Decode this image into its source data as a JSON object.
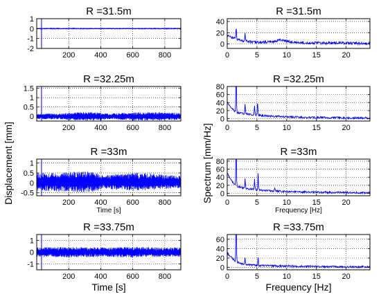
{
  "figure": {
    "ylabel_left": "Displacement [mm]",
    "ylabel_right": "Spectrum [mm/Hz]"
  },
  "chart_data": [
    {
      "type": "line",
      "title": "R =31.5m",
      "xlabel": "",
      "ylabel": "",
      "xlim": [
        0,
        900
      ],
      "ylim": [
        -2,
        1
      ],
      "xticks": [
        200,
        400,
        600,
        800
      ],
      "yticks": [
        1,
        0,
        -1,
        -2
      ],
      "vline_x": 30,
      "grid": true,
      "color": "#0000ff",
      "series": [
        {
          "x_range": [
            0,
            900
          ],
          "center": 0.0,
          "amplitude": 0.06,
          "envelope": [
            [
              0,
              1.0
            ],
            [
              900,
              1.0
            ]
          ]
        }
      ]
    },
    {
      "type": "line",
      "title": "R =32.25m",
      "xlabel": "",
      "ylabel": "",
      "xlim": [
        0,
        900
      ],
      "ylim": [
        -0.25,
        1.6
      ],
      "xticks": [
        200,
        400,
        600,
        800
      ],
      "yticks": [
        1.5,
        1,
        0.5,
        0
      ],
      "vline_x": 30,
      "grid": true,
      "color": "#0000ff",
      "series": [
        {
          "x_range": [
            0,
            900
          ],
          "center": 0.0,
          "amplitude": 0.2,
          "envelope": [
            [
              0,
              0.7
            ],
            [
              150,
              0.8
            ],
            [
              250,
              1.1
            ],
            [
              330,
              1.2
            ],
            [
              420,
              0.9
            ],
            [
              460,
              0.7
            ],
            [
              520,
              1.0
            ],
            [
              650,
              1.1
            ],
            [
              750,
              1.1
            ],
            [
              900,
              0.9
            ]
          ]
        }
      ]
    },
    {
      "type": "line",
      "title": "R =33m",
      "xlabel": "Time [s]",
      "ylabel": "",
      "xlim": [
        0,
        900
      ],
      "ylim": [
        -0.65,
        1.2
      ],
      "xticks": [
        200,
        400,
        600,
        800
      ],
      "yticks": [
        1,
        0.5,
        0,
        -0.5
      ],
      "vline_x": 30,
      "grid": true,
      "color": "#0000ff",
      "series": [
        {
          "x_range": [
            0,
            900
          ],
          "center": 0.05,
          "amplitude": 0.55,
          "envelope": [
            [
              0,
              0.8
            ],
            [
              150,
              0.9
            ],
            [
              300,
              1.0
            ],
            [
              350,
              0.95
            ],
            [
              420,
              0.6
            ],
            [
              470,
              0.7
            ],
            [
              600,
              0.85
            ],
            [
              700,
              0.8
            ],
            [
              800,
              0.65
            ],
            [
              900,
              0.55
            ]
          ]
        }
      ]
    },
    {
      "type": "line",
      "title": "R =33.75m",
      "xlabel": "Time [s]",
      "ylabel": "",
      "xlim": [
        0,
        900
      ],
      "ylim": [
        -1.5,
        1.5
      ],
      "xticks": [
        200,
        400,
        600,
        800
      ],
      "yticks": [
        1,
        0,
        -1
      ],
      "vline_x": 30,
      "grid": true,
      "color": "#0000ff",
      "series": [
        {
          "x_range": [
            0,
            900
          ],
          "center": 0.0,
          "amplitude": 0.45,
          "envelope": [
            [
              0,
              0.9
            ],
            [
              200,
              1.0
            ],
            [
              400,
              0.9
            ],
            [
              600,
              1.0
            ],
            [
              800,
              0.9
            ],
            [
              900,
              0.9
            ]
          ]
        }
      ]
    },
    {
      "type": "line",
      "title": "R =31.5m",
      "xlabel": "",
      "ylabel": "",
      "xlim": [
        0,
        24
      ],
      "ylim": [
        -8,
        45
      ],
      "xticks": [
        0,
        5,
        10,
        15,
        20
      ],
      "yticks": [
        40,
        20,
        0
      ],
      "grid": true,
      "color": "#0000ff",
      "series": [
        {
          "baseline": [
            [
              0,
              14
            ],
            [
              2,
              7
            ],
            [
              4,
              3
            ],
            [
              6,
              2
            ],
            [
              8,
              4
            ],
            [
              9,
              7
            ],
            [
              10,
              4
            ],
            [
              12,
              2
            ],
            [
              15,
              1
            ],
            [
              20,
              1
            ],
            [
              24,
              0.5
            ]
          ],
          "noise": 3,
          "peaks": [
            [
              1.5,
              22
            ],
            [
              3.0,
              14
            ]
          ]
        }
      ]
    },
    {
      "type": "line",
      "title": "R =32.25m",
      "xlabel": "",
      "ylabel": "",
      "xlim": [
        0,
        24
      ],
      "ylim": [
        -6,
        80
      ],
      "xticks": [
        0,
        5,
        10,
        15,
        20
      ],
      "yticks": [
        80,
        60,
        40,
        20,
        0
      ],
      "grid": true,
      "color": "#0000ff",
      "series": [
        {
          "baseline": [
            [
              0,
              40
            ],
            [
              0.5,
              30
            ],
            [
              1.4,
              15
            ],
            [
              3,
              12
            ],
            [
              5,
              8
            ],
            [
              8,
              5
            ],
            [
              12,
              3
            ],
            [
              16,
              2
            ],
            [
              20,
              1.5
            ],
            [
              24,
              1
            ]
          ],
          "noise": 3,
          "peaks": [
            [
              1.5,
              120
            ],
            [
              3.0,
              25
            ],
            [
              4.6,
              25
            ],
            [
              5.1,
              35
            ]
          ]
        }
      ]
    },
    {
      "type": "line",
      "title": "R =33m",
      "xlabel": "Frequency [Hz]",
      "ylabel": "",
      "xlim": [
        0,
        24
      ],
      "ylim": [
        -6,
        85
      ],
      "xticks": [
        0,
        5,
        10,
        15,
        20
      ],
      "yticks": [
        80,
        60,
        40,
        20,
        0
      ],
      "grid": true,
      "color": "#0000ff",
      "series": [
        {
          "baseline": [
            [
              0,
              50
            ],
            [
              0.5,
              35
            ],
            [
              1.4,
              18
            ],
            [
              3,
              12
            ],
            [
              5,
              8
            ],
            [
              8,
              5
            ],
            [
              12,
              3
            ],
            [
              16,
              2
            ],
            [
              20,
              1.5
            ],
            [
              24,
              1
            ]
          ],
          "noise": 3,
          "peaks": [
            [
              1.5,
              120
            ],
            [
              3.0,
              24
            ],
            [
              4.6,
              28
            ],
            [
              5.2,
              40
            ],
            [
              8.0,
              10
            ]
          ]
        }
      ]
    },
    {
      "type": "line",
      "title": "R =33.75m",
      "xlabel": "Frequency [Hz]",
      "ylabel": "",
      "xlim": [
        0,
        24
      ],
      "ylim": [
        -5,
        70
      ],
      "xticks": [
        0,
        5,
        10,
        15,
        20
      ],
      "yticks": [
        60,
        40,
        20,
        0
      ],
      "grid": true,
      "color": "#0000ff",
      "series": [
        {
          "baseline": [
            [
              0,
              30
            ],
            [
              0.8,
              20
            ],
            [
              1.4,
              12
            ],
            [
              3,
              6
            ],
            [
              5,
              4
            ],
            [
              8,
              3
            ],
            [
              12,
              2
            ],
            [
              16,
              1.5
            ],
            [
              20,
              1
            ],
            [
              24,
              1
            ]
          ],
          "noise": 2.5,
          "peaks": [
            [
              1.5,
              120
            ],
            [
              3.0,
              14
            ],
            [
              5.2,
              18
            ]
          ]
        }
      ]
    }
  ]
}
